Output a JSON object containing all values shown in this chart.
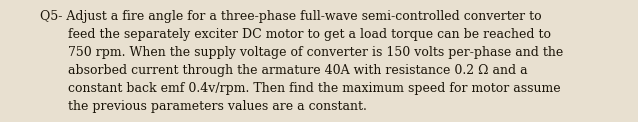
{
  "background_color": "#e8e0d0",
  "text_color": "#1a1408",
  "title_indent": 0.068,
  "body_indent": 0.115,
  "font_size": 9.0,
  "font_family": "DejaVu Serif",
  "figsize": [
    6.38,
    1.22
  ],
  "dpi": 100,
  "line1": "Q5- Adjust a fire angle for a three-phase full-wave semi-controlled converter to",
  "line2": "feed the separately exciter DC motor to get a load torque can be reached to",
  "line3": "750 rpm. When the supply voltage of converter is 150 volts per-phase and the",
  "line4": "absorbed current through the armature 40A with resistance 0.2 Ω and a",
  "line5": "constant back emf 0.4v/rpm. Then find the maximum speed for motor assume",
  "line6": "the previous parameters values are a constant."
}
